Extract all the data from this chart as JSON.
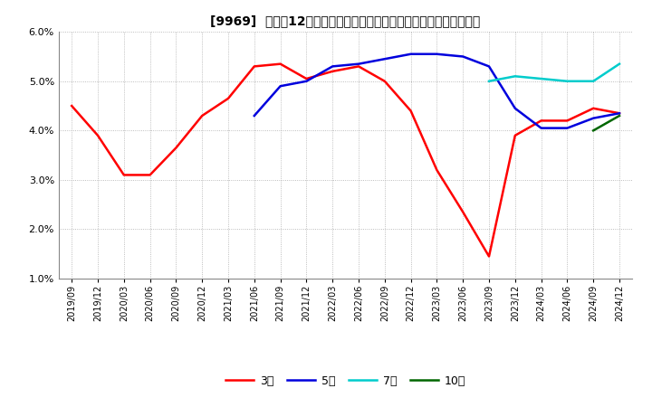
{
  "title": "[9969]  売上高12か月移動合計の対前年同期増減率の標準偏差の推移",
  "ylim": [
    0.01,
    0.06
  ],
  "yticks": [
    0.01,
    0.02,
    0.03,
    0.04,
    0.05,
    0.06
  ],
  "legend_labels": [
    "3年",
    "5年",
    "7年",
    "10年"
  ],
  "legend_colors": [
    "#ff0000",
    "#0000dd",
    "#00cccc",
    "#006600"
  ],
  "x_labels": [
    "2019/09",
    "2019/12",
    "2020/03",
    "2020/06",
    "2020/09",
    "2020/12",
    "2021/03",
    "2021/06",
    "2021/09",
    "2021/12",
    "2022/03",
    "2022/06",
    "2022/09",
    "2022/12",
    "2023/03",
    "2023/06",
    "2023/09",
    "2023/12",
    "2024/03",
    "2024/06",
    "2024/09",
    "2024/12"
  ],
  "series_3y": [
    0.045,
    0.039,
    0.031,
    0.031,
    0.0365,
    0.043,
    0.0465,
    0.053,
    0.0535,
    0.0505,
    0.052,
    0.053,
    0.05,
    0.044,
    0.032,
    0.0235,
    0.0145,
    0.039,
    0.042,
    0.042,
    0.0445,
    0.0435
  ],
  "series_5y": [
    null,
    null,
    null,
    null,
    null,
    null,
    null,
    0.043,
    0.049,
    0.05,
    0.053,
    0.0535,
    0.0545,
    0.0555,
    0.0555,
    0.055,
    0.053,
    0.0445,
    0.0405,
    0.0405,
    0.0425,
    0.0435
  ],
  "series_7y": [
    null,
    null,
    null,
    null,
    null,
    null,
    null,
    null,
    null,
    null,
    null,
    null,
    null,
    null,
    null,
    null,
    0.05,
    0.051,
    0.0505,
    0.05,
    0.05,
    0.0535
  ],
  "series_10y": [
    null,
    null,
    null,
    null,
    null,
    null,
    null,
    null,
    null,
    null,
    null,
    null,
    null,
    null,
    null,
    null,
    null,
    null,
    null,
    null,
    0.04,
    0.043
  ]
}
